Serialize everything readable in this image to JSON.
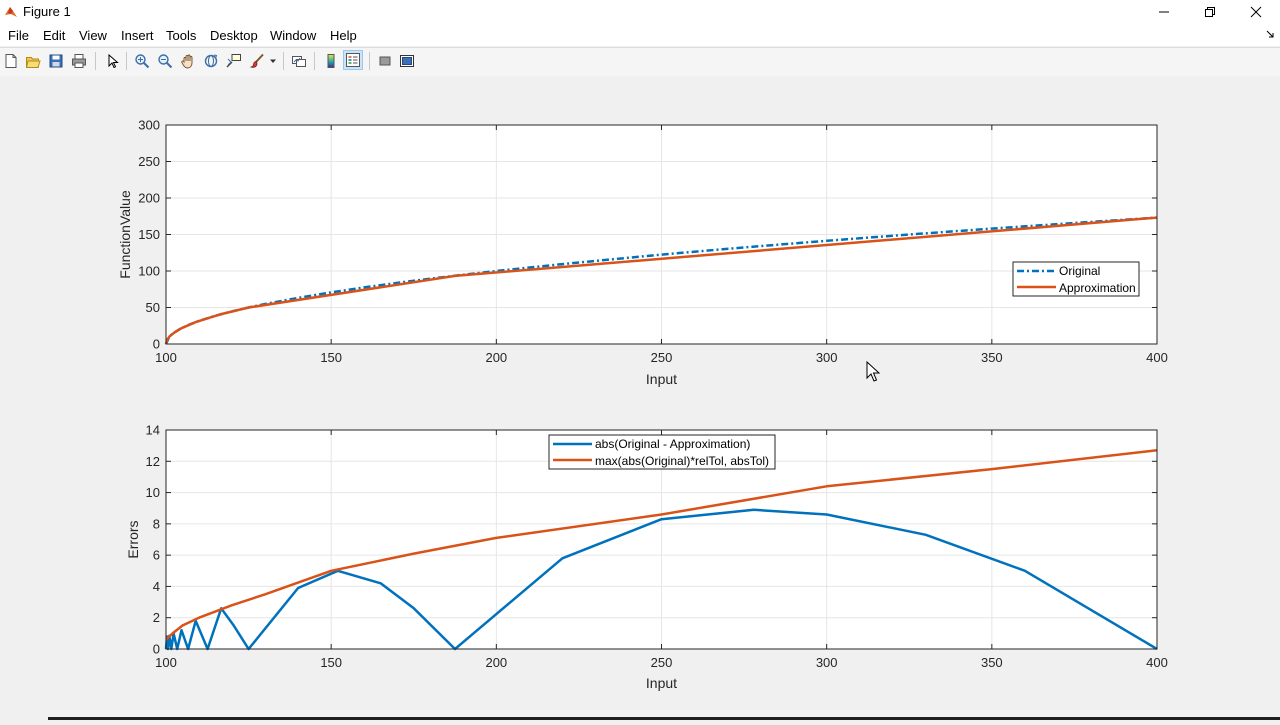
{
  "window": {
    "title": "Figure 1",
    "icons": {
      "app": "matlab-icon",
      "minimize": "minimize-icon",
      "maximize": "restore-icon",
      "close": "close-icon"
    }
  },
  "menu": {
    "items": [
      "File",
      "Edit",
      "View",
      "Insert",
      "Tools",
      "Desktop",
      "Window",
      "Help"
    ]
  },
  "toolbar": {
    "buttons": [
      "new-figure-icon",
      "open-file-icon",
      "save-icon",
      "print-icon",
      "edit-plot-icon",
      "zoom-in-icon",
      "zoom-out-icon",
      "pan-icon",
      "rotate-3d-icon",
      "data-cursor-icon",
      "brush-icon",
      "link-plot-icon",
      "insert-colorbar-icon",
      "insert-legend-icon",
      "hide-plot-tools-icon",
      "show-plot-tools-icon"
    ]
  },
  "colors": {
    "original": "#0072bd",
    "approximation": "#d95319",
    "plot_bg": "#ffffff",
    "grid": "#e6e6e6"
  },
  "chart_data": [
    {
      "type": "line",
      "title": "",
      "xlabel": "Input",
      "ylabel": "FunctionValue",
      "xlim": [
        100,
        400
      ],
      "ylim": [
        0,
        300
      ],
      "xticks": [
        100,
        150,
        200,
        250,
        300,
        350,
        400
      ],
      "yticks": [
        0,
        50,
        100,
        150,
        200,
        250,
        300
      ],
      "grid": true,
      "legend_position": "right",
      "series": [
        {
          "name": "Original",
          "style": "dash-dot",
          "x": [
            100,
            101,
            102,
            104,
            107,
            110,
            115,
            120,
            125,
            130,
            140,
            150,
            160,
            170,
            180,
            187,
            200,
            220,
            250,
            275,
            300,
            325,
            350,
            375,
            400
          ],
          "y": [
            0,
            10,
            14.1,
            20,
            26.5,
            31.6,
            38.7,
            44.7,
            50,
            54.8,
            63.2,
            70.7,
            77.5,
            83.7,
            89.4,
            93.3,
            100,
            109.5,
            122.5,
            132.3,
            141.4,
            150,
            158.1,
            165.8,
            173.2
          ]
        },
        {
          "name": "Approximation",
          "style": "solid",
          "x": [
            100,
            100.3,
            101,
            102.3,
            104.7,
            109,
            116.7,
            125,
            187.5,
            400
          ],
          "y": [
            0,
            5.5,
            10,
            15,
            21.7,
            30,
            40.9,
            50,
            93.3,
            173.2
          ]
        }
      ]
    },
    {
      "type": "line",
      "title": "",
      "xlabel": "Input",
      "ylabel": "Errors",
      "xlim": [
        100,
        400
      ],
      "ylim": [
        0,
        14
      ],
      "xticks": [
        100,
        150,
        200,
        250,
        300,
        350,
        400
      ],
      "yticks": [
        0,
        2,
        4,
        6,
        8,
        10,
        12,
        14
      ],
      "grid": true,
      "legend_position": "top-center",
      "series": [
        {
          "name": "abs(Original - Approximation)",
          "x": [
            100,
            100.3,
            100.6,
            101,
            101.6,
            102.3,
            103.4,
            104.7,
            106.7,
            109,
            112.6,
            116.7,
            120.5,
            125,
            140,
            152,
            165,
            175,
            187.5,
            220,
            250,
            278,
            300,
            330,
            360,
            400
          ],
          "y": [
            0,
            0.8,
            0,
            0.85,
            0,
            1.0,
            0,
            1.2,
            0,
            1.8,
            0,
            2.6,
            1.5,
            0,
            3.9,
            5.0,
            4.2,
            2.6,
            0,
            5.8,
            8.3,
            8.9,
            8.6,
            7.3,
            5.0,
            0
          ]
        },
        {
          "name": "max(abs(Original)*relTol, absTol)",
          "x": [
            100,
            102,
            105,
            110,
            120,
            130,
            150,
            175,
            200,
            250,
            300,
            350,
            400
          ],
          "y": [
            0.6,
            1.0,
            1.5,
            2.0,
            2.8,
            3.5,
            5.0,
            6.1,
            7.1,
            8.6,
            10.4,
            11.5,
            12.7
          ]
        }
      ]
    }
  ]
}
